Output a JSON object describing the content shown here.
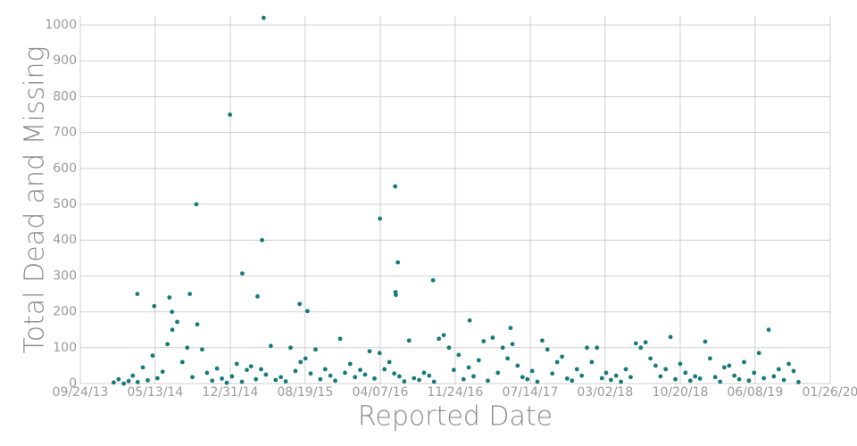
{
  "chart_data": {
    "type": "scatter",
    "x_label": "Reported Date",
    "y_label": "Total Dead and Missing",
    "color": "#177a7b",
    "grid": true,
    "xlim": [
      "09/24/13",
      "01/26/20"
    ],
    "xticks": [
      "09/24/13",
      "05/13/14",
      "12/31/14",
      "08/19/15",
      "04/07/16",
      "11/24/16",
      "07/14/17",
      "03/02/18",
      "10/20/18",
      "06/08/19",
      "01/26/20"
    ],
    "ylim": [
      0,
      1025
    ],
    "yticks": [
      0,
      100,
      200,
      300,
      400,
      500,
      600,
      700,
      800,
      900,
      1000
    ],
    "x": [
      "03/19/14",
      "05/10/14",
      "06/26/14",
      "07/04/14",
      "08/28/14",
      "09/17/14",
      "12/30/14",
      "02/06/15",
      "03/25/15",
      "04/08/15",
      "04/13/15",
      "08/02/15",
      "08/26/15",
      "04/06/16",
      "05/23/16",
      "05/31/16",
      "05/24/16",
      "05/25/16",
      "09/17/16",
      "01/08/17",
      "05/14/17",
      "01/05/14",
      "01/20/14",
      "02/05/14",
      "02/20/14",
      "03/05/14",
      "03/20/14",
      "04/05/14",
      "04/20/14",
      "05/05/14",
      "05/20/14",
      "06/05/14",
      "06/20/14",
      "07/05/14",
      "07/20/14",
      "08/05/14",
      "08/20/14",
      "09/05/14",
      "09/20/14",
      "10/05/14",
      "10/20/14",
      "11/05/14",
      "11/20/14",
      "12/05/14",
      "12/20/14",
      "01/05/15",
      "01/20/15",
      "02/05/15",
      "02/20/15",
      "03/05/15",
      "03/20/15",
      "04/05/15",
      "04/20/15",
      "05/05/15",
      "05/20/15",
      "06/05/15",
      "06/20/15",
      "07/05/15",
      "07/20/15",
      "08/05/15",
      "08/20/15",
      "09/05/15",
      "09/20/15",
      "10/05/15",
      "10/20/15",
      "11/05/15",
      "11/20/15",
      "12/05/15",
      "12/20/15",
      "01/05/16",
      "01/20/16",
      "02/05/16",
      "02/20/16",
      "03/05/16",
      "03/20/16",
      "04/05/16",
      "04/20/16",
      "05/05/16",
      "05/20/16",
      "06/05/16",
      "06/20/16",
      "07/05/16",
      "07/20/16",
      "08/05/16",
      "08/20/16",
      "09/05/16",
      "09/20/16",
      "10/05/16",
      "10/20/16",
      "11/05/16",
      "11/20/16",
      "12/05/16",
      "12/20/16",
      "01/05/17",
      "01/20/17",
      "02/05/17",
      "02/20/17",
      "03/05/17",
      "03/20/17",
      "04/05/17",
      "04/20/17",
      "05/05/17",
      "05/20/17",
      "06/05/17",
      "06/20/17",
      "07/05/17",
      "07/20/17",
      "08/05/17",
      "08/20/17",
      "09/05/17",
      "09/20/17",
      "10/05/17",
      "10/20/17",
      "11/05/17",
      "11/20/17",
      "12/05/17",
      "12/20/17",
      "01/05/18",
      "01/20/18",
      "02/05/18",
      "02/20/18",
      "03/05/18",
      "03/20/18",
      "04/05/18",
      "04/20/18",
      "05/05/18",
      "05/20/18",
      "06/05/18",
      "06/20/18",
      "07/05/18",
      "07/20/18",
      "08/05/18",
      "08/20/18",
      "09/05/18",
      "09/20/18",
      "10/05/18",
      "10/20/18",
      "11/05/18",
      "11/20/18",
      "12/05/18",
      "12/20/18",
      "01/05/19",
      "01/20/19",
      "02/05/19",
      "02/20/19",
      "03/05/19",
      "03/20/19",
      "04/05/19",
      "04/20/19",
      "05/05/19",
      "05/20/19",
      "06/05/19",
      "06/20/19",
      "07/05/19",
      "07/20/19",
      "08/05/19",
      "08/20/19",
      "09/05/19",
      "09/20/19",
      "10/05/19",
      "10/20/19"
    ],
    "values": [
      250,
      216,
      240,
      200,
      250,
      500,
      750,
      307,
      243,
      400,
      1020,
      222,
      202,
      460,
      550,
      338,
      255,
      247,
      288,
      176,
      155,
      3,
      12,
      0,
      7,
      22,
      4,
      45,
      9,
      78,
      15,
      33,
      110,
      150,
      172,
      60,
      100,
      18,
      165,
      95,
      30,
      8,
      42,
      14,
      2,
      20,
      55,
      5,
      38,
      48,
      12,
      40,
      25,
      105,
      10,
      18,
      6,
      100,
      35,
      60,
      70,
      28,
      95,
      12,
      40,
      22,
      8,
      125,
      30,
      55,
      18,
      38,
      25,
      90,
      14,
      85,
      40,
      60,
      28,
      20,
      6,
      120,
      15,
      10,
      30,
      22,
      5,
      125,
      135,
      100,
      38,
      80,
      12,
      45,
      20,
      65,
      118,
      8,
      128,
      30,
      100,
      70,
      110,
      50,
      18,
      12,
      35,
      5,
      120,
      95,
      28,
      60,
      75,
      14,
      8,
      40,
      22,
      100,
      60,
      100,
      15,
      30,
      10,
      22,
      5,
      40,
      18,
      112,
      100,
      115,
      70,
      50,
      20,
      40,
      130,
      12,
      55,
      30,
      8,
      20,
      14,
      117,
      70,
      18,
      5,
      45,
      50,
      22,
      12,
      60,
      8,
      30,
      85,
      15,
      150,
      20,
      40,
      10,
      55,
      35,
      4
    ]
  }
}
